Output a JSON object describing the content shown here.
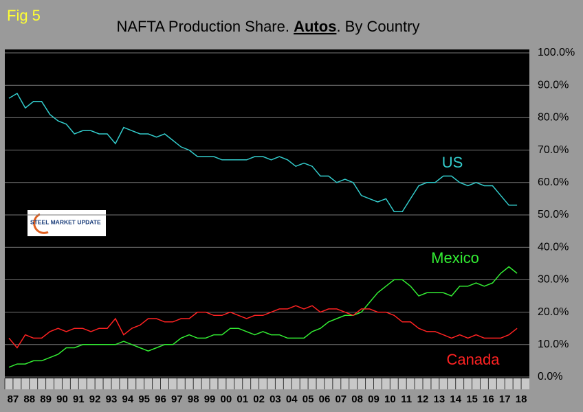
{
  "chart_data": {
    "type": "line",
    "figure_label": "Fig 5",
    "title_parts": [
      "NAFTA Production Share. ",
      "Autos",
      ". By Country"
    ],
    "logo": "STEEL MARKET UPDATE",
    "categories": [
      "87",
      null,
      "88",
      null,
      "89",
      null,
      "90",
      null,
      "91",
      null,
      "92",
      null,
      "93",
      null,
      "94",
      null,
      "95",
      null,
      "96",
      null,
      "97",
      null,
      "98",
      null,
      "99",
      null,
      "00",
      null,
      "01",
      null,
      "02",
      null,
      "03",
      null,
      "04",
      null,
      "05",
      null,
      "06",
      null,
      "07",
      null,
      "08",
      null,
      "09",
      null,
      "10",
      null,
      "11",
      null,
      "12",
      null,
      "13",
      null,
      "14",
      null,
      "15",
      null,
      "16",
      null,
      "17",
      null,
      "18",
      null
    ],
    "series": [
      {
        "name": "US",
        "color": "#33cccc",
        "values": [
          86,
          87.5,
          83,
          85,
          85,
          81,
          79,
          78,
          75,
          76,
          76,
          75,
          75,
          72,
          77,
          76,
          75,
          75,
          74,
          75,
          73,
          71,
          70,
          68,
          68,
          68,
          67,
          67,
          67,
          67,
          68,
          68,
          67,
          68,
          67,
          65,
          66,
          65,
          62,
          62,
          60,
          61,
          60,
          56,
          55,
          54,
          55,
          51,
          51,
          55,
          59,
          60,
          60,
          62,
          62,
          60,
          59,
          60,
          59,
          59,
          56,
          53,
          53,
          null
        ]
      },
      {
        "name": "Mexico",
        "color": "#33ee33",
        "values": [
          3,
          4,
          4,
          5,
          5,
          6,
          7,
          9,
          9,
          10,
          10,
          10,
          10,
          10,
          11,
          10,
          9,
          8,
          9,
          10,
          10,
          12,
          13,
          12,
          12,
          13,
          13,
          15,
          15,
          14,
          13,
          14,
          13,
          13,
          12,
          12,
          12,
          14,
          15,
          17,
          18,
          19,
          19,
          20,
          23,
          26,
          28,
          30,
          30,
          28,
          25,
          26,
          26,
          26,
          25,
          28,
          28,
          29,
          28,
          29,
          32,
          34,
          32,
          null
        ]
      },
      {
        "name": "Canada",
        "color": "#ff2222",
        "values": [
          12,
          9,
          13,
          12,
          12,
          14,
          15,
          14,
          15,
          15,
          14,
          15,
          15,
          18,
          13,
          15,
          16,
          18,
          18,
          17,
          17,
          18,
          18,
          20,
          20,
          19,
          19,
          20,
          19,
          18,
          19,
          19,
          20,
          21,
          21,
          22,
          21,
          22,
          20,
          21,
          21,
          20,
          19,
          21,
          21,
          20,
          20,
          19,
          17,
          17,
          15,
          14,
          14,
          13,
          12,
          13,
          12,
          13,
          12,
          12,
          12,
          13,
          15,
          null
        ]
      }
    ],
    "ylim": [
      0,
      100
    ],
    "yticks": [
      {
        "value": 0,
        "label": "0.0%"
      },
      {
        "value": 10,
        "label": "10.0%"
      },
      {
        "value": 20,
        "label": "20.0%"
      },
      {
        "value": 30,
        "label": "30.0%"
      },
      {
        "value": 40,
        "label": "40.0%"
      },
      {
        "value": 50,
        "label": "50.0%"
      },
      {
        "value": 60,
        "label": "60.0%"
      },
      {
        "value": 70,
        "label": "70.0%"
      },
      {
        "value": 80,
        "label": "80.0%"
      },
      {
        "value": 90,
        "label": "90.0%"
      },
      {
        "value": 100,
        "label": "100.0%"
      }
    ],
    "grid": true
  }
}
